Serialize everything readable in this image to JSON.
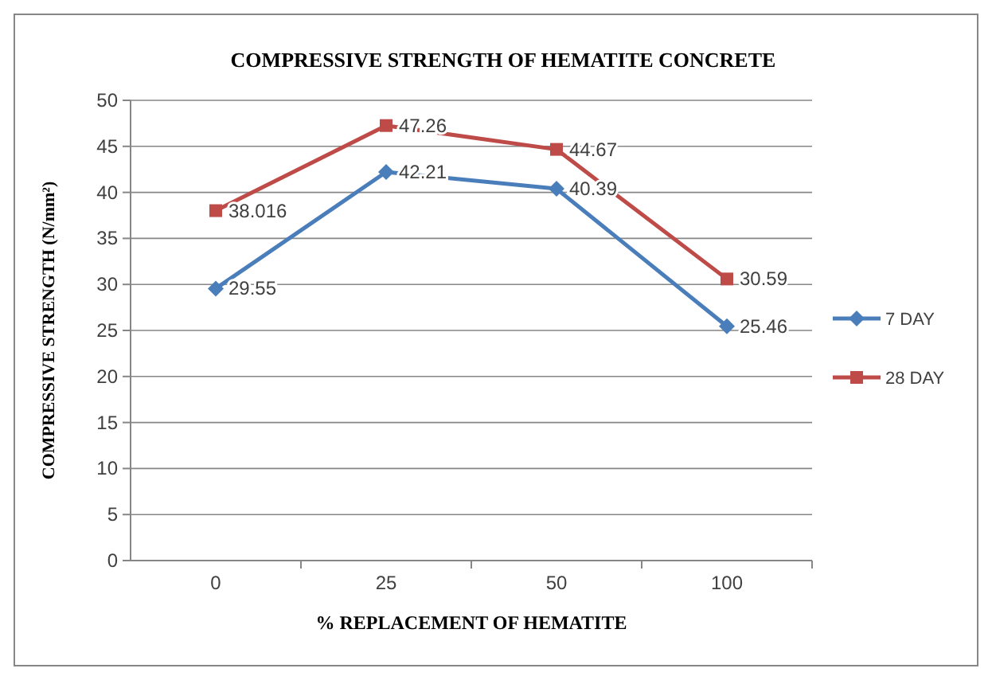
{
  "chart_data": {
    "type": "line",
    "title": "COMPRESSIVE STRENGTH OF HEMATITE CONCRETE",
    "xlabel": "% REPLACEMENT OF HEMATITE",
    "ylabel": "COMPRESSIVE STRENGTH (N/mm²)",
    "categories": [
      "0",
      "25",
      "50",
      "100"
    ],
    "series": [
      {
        "name": "7 DAY",
        "color": "#4a7ebb",
        "marker": "diamond",
        "values": [
          29.55,
          42.21,
          40.39,
          25.46
        ]
      },
      {
        "name": "28 DAY",
        "color": "#be4b48",
        "marker": "square",
        "values": [
          38.016,
          47.26,
          44.67,
          30.59
        ]
      }
    ],
    "ylim": [
      0,
      50
    ],
    "yticks": [
      0,
      5,
      10,
      15,
      20,
      25,
      30,
      35,
      40,
      45,
      50
    ],
    "grid": "y",
    "legend": "right",
    "data_labels": true
  }
}
